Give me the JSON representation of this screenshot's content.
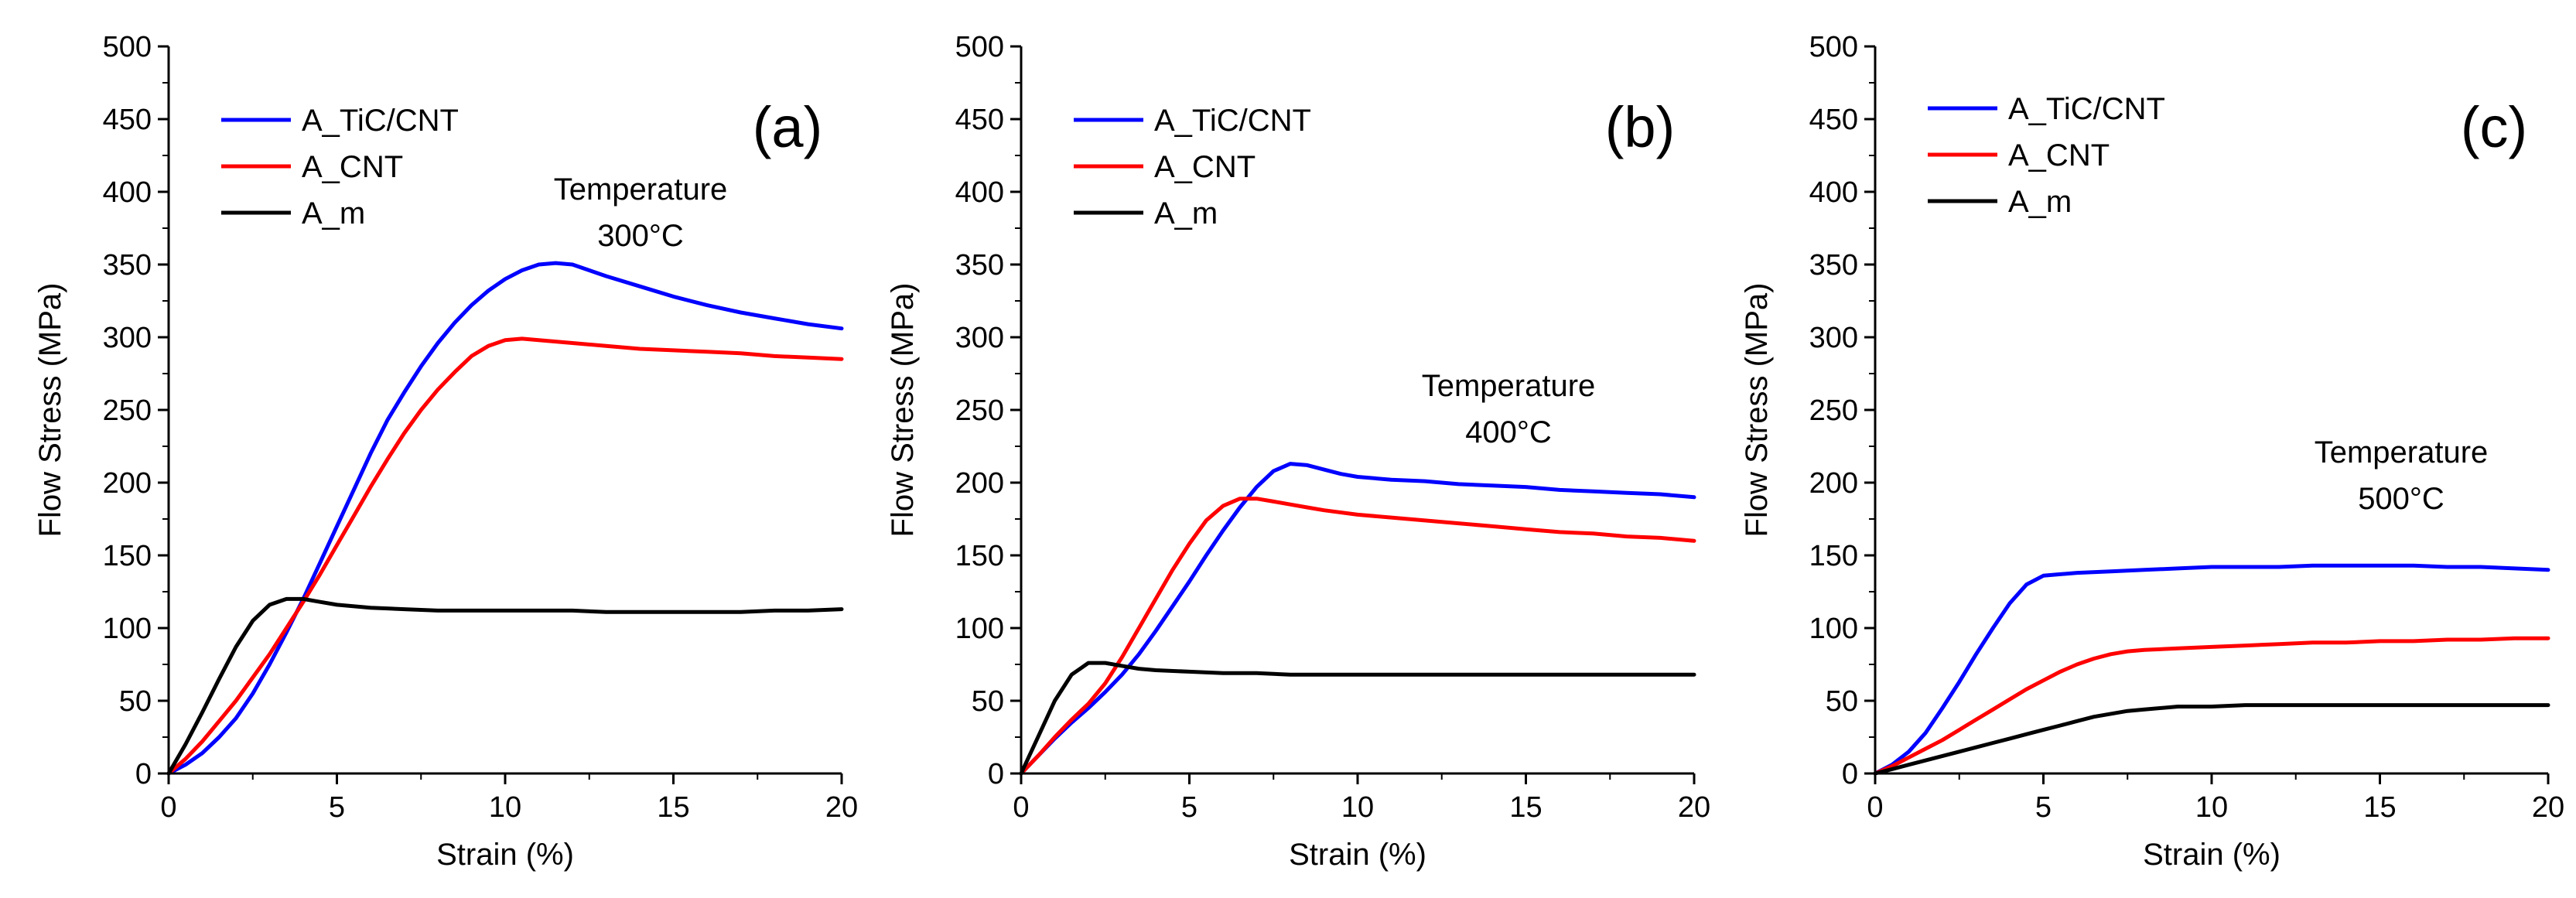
{
  "figure": {
    "panels": [
      {
        "id": "a",
        "panel_label": "(a)",
        "temperature_title": "Temperature",
        "temperature_value": "300°C"
      },
      {
        "id": "b",
        "panel_label": "(b)",
        "temperature_title": "Temperature",
        "temperature_value": "400°C"
      },
      {
        "id": "c",
        "panel_label": "(c)",
        "temperature_title": "Temperature",
        "temperature_value": "500°C"
      }
    ]
  },
  "chart_data": [
    {
      "type": "line",
      "title": "(a)",
      "annotation": [
        "Temperature",
        "300°C"
      ],
      "xlabel": "Strain (%)",
      "ylabel": "Flow Stress (MPa)",
      "xlim": [
        0,
        20
      ],
      "ylim": [
        0,
        500
      ],
      "xticks": [
        0,
        5,
        10,
        15,
        20
      ],
      "yticks": [
        0,
        50,
        100,
        150,
        200,
        250,
        300,
        350,
        400,
        450,
        500
      ],
      "legend": "top-left",
      "series": [
        {
          "name": "A_TiC/CNT",
          "color": "#0000ff",
          "x": [
            0,
            0.5,
            1,
            1.5,
            2,
            2.5,
            3,
            3.5,
            4,
            4.5,
            5,
            5.5,
            6,
            6.5,
            7,
            7.5,
            8,
            8.5,
            9,
            9.5,
            10,
            10.5,
            11,
            11.5,
            12,
            12.5,
            13,
            14,
            15,
            16,
            17,
            18,
            19,
            20
          ],
          "y": [
            0,
            6,
            14,
            25,
            38,
            55,
            75,
            97,
            120,
            145,
            170,
            195,
            220,
            243,
            262,
            280,
            296,
            310,
            322,
            332,
            340,
            346,
            350,
            351,
            350,
            346,
            342,
            335,
            328,
            322,
            317,
            313,
            309,
            306
          ]
        },
        {
          "name": "A_CNT",
          "color": "#ff0000",
          "x": [
            0,
            0.5,
            1,
            1.5,
            2,
            2.5,
            3,
            3.5,
            4,
            4.5,
            5,
            5.5,
            6,
            6.5,
            7,
            7.5,
            8,
            8.5,
            9,
            9.5,
            10,
            10.5,
            11,
            11.5,
            12,
            13,
            14,
            15,
            16,
            17,
            18,
            19,
            20
          ],
          "y": [
            0,
            10,
            22,
            36,
            50,
            66,
            82,
            100,
            118,
            137,
            157,
            177,
            197,
            216,
            234,
            250,
            264,
            276,
            287,
            294,
            298,
            299,
            298,
            297,
            296,
            294,
            292,
            291,
            290,
            289,
            287,
            286,
            285
          ]
        },
        {
          "name": "A_m",
          "color": "#000000",
          "x": [
            0,
            0.5,
            1,
            1.5,
            2,
            2.5,
            3,
            3.5,
            4,
            4.5,
            5,
            6,
            7,
            8,
            9,
            10,
            11,
            12,
            13,
            14,
            15,
            16,
            17,
            18,
            19,
            20
          ],
          "y": [
            0,
            20,
            42,
            65,
            87,
            105,
            116,
            120,
            120,
            118,
            116,
            114,
            113,
            112,
            112,
            112,
            112,
            112,
            111,
            111,
            111,
            111,
            111,
            112,
            112,
            113
          ]
        }
      ]
    },
    {
      "type": "line",
      "title": "(b)",
      "annotation": [
        "Temperature",
        "400°C"
      ],
      "xlabel": "Strain (%)",
      "ylabel": "Flow Stress (MPa)",
      "xlim": [
        0,
        20
      ],
      "ylim": [
        0,
        500
      ],
      "xticks": [
        0,
        5,
        10,
        15,
        20
      ],
      "yticks": [
        0,
        50,
        100,
        150,
        200,
        250,
        300,
        350,
        400,
        450,
        500
      ],
      "legend": "top-left",
      "series": [
        {
          "name": "A_TiC/CNT",
          "color": "#0000ff",
          "x": [
            0,
            0.5,
            1,
            1.5,
            2,
            2.5,
            3,
            3.5,
            4,
            4.5,
            5,
            5.5,
            6,
            6.5,
            7,
            7.5,
            8,
            8.5,
            9,
            9.5,
            10,
            11,
            12,
            13,
            14,
            15,
            16,
            17,
            18,
            19,
            20
          ],
          "y": [
            0,
            12,
            24,
            35,
            45,
            56,
            68,
            82,
            98,
            115,
            132,
            150,
            167,
            183,
            197,
            208,
            213,
            212,
            209,
            206,
            204,
            202,
            201,
            199,
            198,
            197,
            195,
            194,
            193,
            192,
            190
          ]
        },
        {
          "name": "A_CNT",
          "color": "#ff0000",
          "x": [
            0,
            0.5,
            1,
            1.5,
            2,
            2.5,
            3,
            3.5,
            4,
            4.5,
            5,
            5.5,
            6,
            6.5,
            7,
            7.5,
            8,
            8.5,
            9,
            10,
            11,
            12,
            13,
            14,
            15,
            16,
            17,
            18,
            19,
            20
          ],
          "y": [
            0,
            12,
            25,
            37,
            48,
            62,
            80,
            100,
            120,
            140,
            158,
            174,
            184,
            189,
            189,
            187,
            185,
            183,
            181,
            178,
            176,
            174,
            172,
            170,
            168,
            166,
            165,
            163,
            162,
            160
          ]
        },
        {
          "name": "A_m",
          "color": "#000000",
          "x": [
            0,
            0.5,
            1,
            1.5,
            2,
            2.5,
            3,
            3.5,
            4,
            5,
            6,
            7,
            8,
            9,
            10,
            11,
            12,
            13,
            14,
            15,
            16,
            17,
            18,
            19,
            20
          ],
          "y": [
            0,
            25,
            50,
            68,
            76,
            76,
            74,
            72,
            71,
            70,
            69,
            69,
            68,
            68,
            68,
            68,
            68,
            68,
            68,
            68,
            68,
            68,
            68,
            68,
            68
          ]
        }
      ]
    },
    {
      "type": "line",
      "title": "(c)",
      "annotation": [
        "Temperature",
        "500°C"
      ],
      "xlabel": "Strain (%)",
      "ylabel": "Flow Stress (MPa)",
      "xlim": [
        0,
        20
      ],
      "ylim": [
        0,
        500
      ],
      "xticks": [
        0,
        5,
        10,
        15,
        20
      ],
      "yticks": [
        0,
        50,
        100,
        150,
        200,
        250,
        300,
        350,
        400,
        450,
        500
      ],
      "legend": "top-left",
      "series": [
        {
          "name": "A_TiC/CNT",
          "color": "#0000ff",
          "x": [
            0,
            0.5,
            1,
            1.5,
            2,
            2.5,
            3,
            3.5,
            4,
            4.5,
            5,
            5.5,
            6,
            7,
            8,
            9,
            10,
            11,
            12,
            13,
            14,
            15,
            16,
            17,
            18,
            19,
            20
          ],
          "y": [
            0,
            6,
            15,
            28,
            45,
            63,
            82,
            100,
            117,
            130,
            136,
            137,
            138,
            139,
            140,
            141,
            142,
            142,
            142,
            143,
            143,
            143,
            143,
            142,
            142,
            141,
            140
          ]
        },
        {
          "name": "A_CNT",
          "color": "#ff0000",
          "x": [
            0,
            0.5,
            1,
            1.5,
            2,
            2.5,
            3,
            3.5,
            4,
            4.5,
            5,
            5.5,
            6,
            6.5,
            7,
            7.5,
            8,
            9,
            10,
            11,
            12,
            13,
            14,
            15,
            16,
            17,
            18,
            19,
            20
          ],
          "y": [
            0,
            5,
            11,
            17,
            23,
            30,
            37,
            44,
            51,
            58,
            64,
            70,
            75,
            79,
            82,
            84,
            85,
            86,
            87,
            88,
            89,
            90,
            90,
            91,
            91,
            92,
            92,
            93,
            93
          ]
        },
        {
          "name": "A_m",
          "color": "#000000",
          "x": [
            0,
            0.5,
            1,
            1.5,
            2,
            2.5,
            3,
            3.5,
            4,
            4.5,
            5,
            5.5,
            6,
            6.5,
            7,
            7.5,
            8,
            9,
            10,
            11,
            12,
            13,
            14,
            15,
            16,
            17,
            18,
            19,
            20
          ],
          "y": [
            0,
            3,
            6,
            9,
            12,
            15,
            18,
            21,
            24,
            27,
            30,
            33,
            36,
            39,
            41,
            43,
            44,
            46,
            46,
            47,
            47,
            47,
            47,
            47,
            47,
            47,
            47,
            47,
            47
          ]
        }
      ]
    }
  ]
}
